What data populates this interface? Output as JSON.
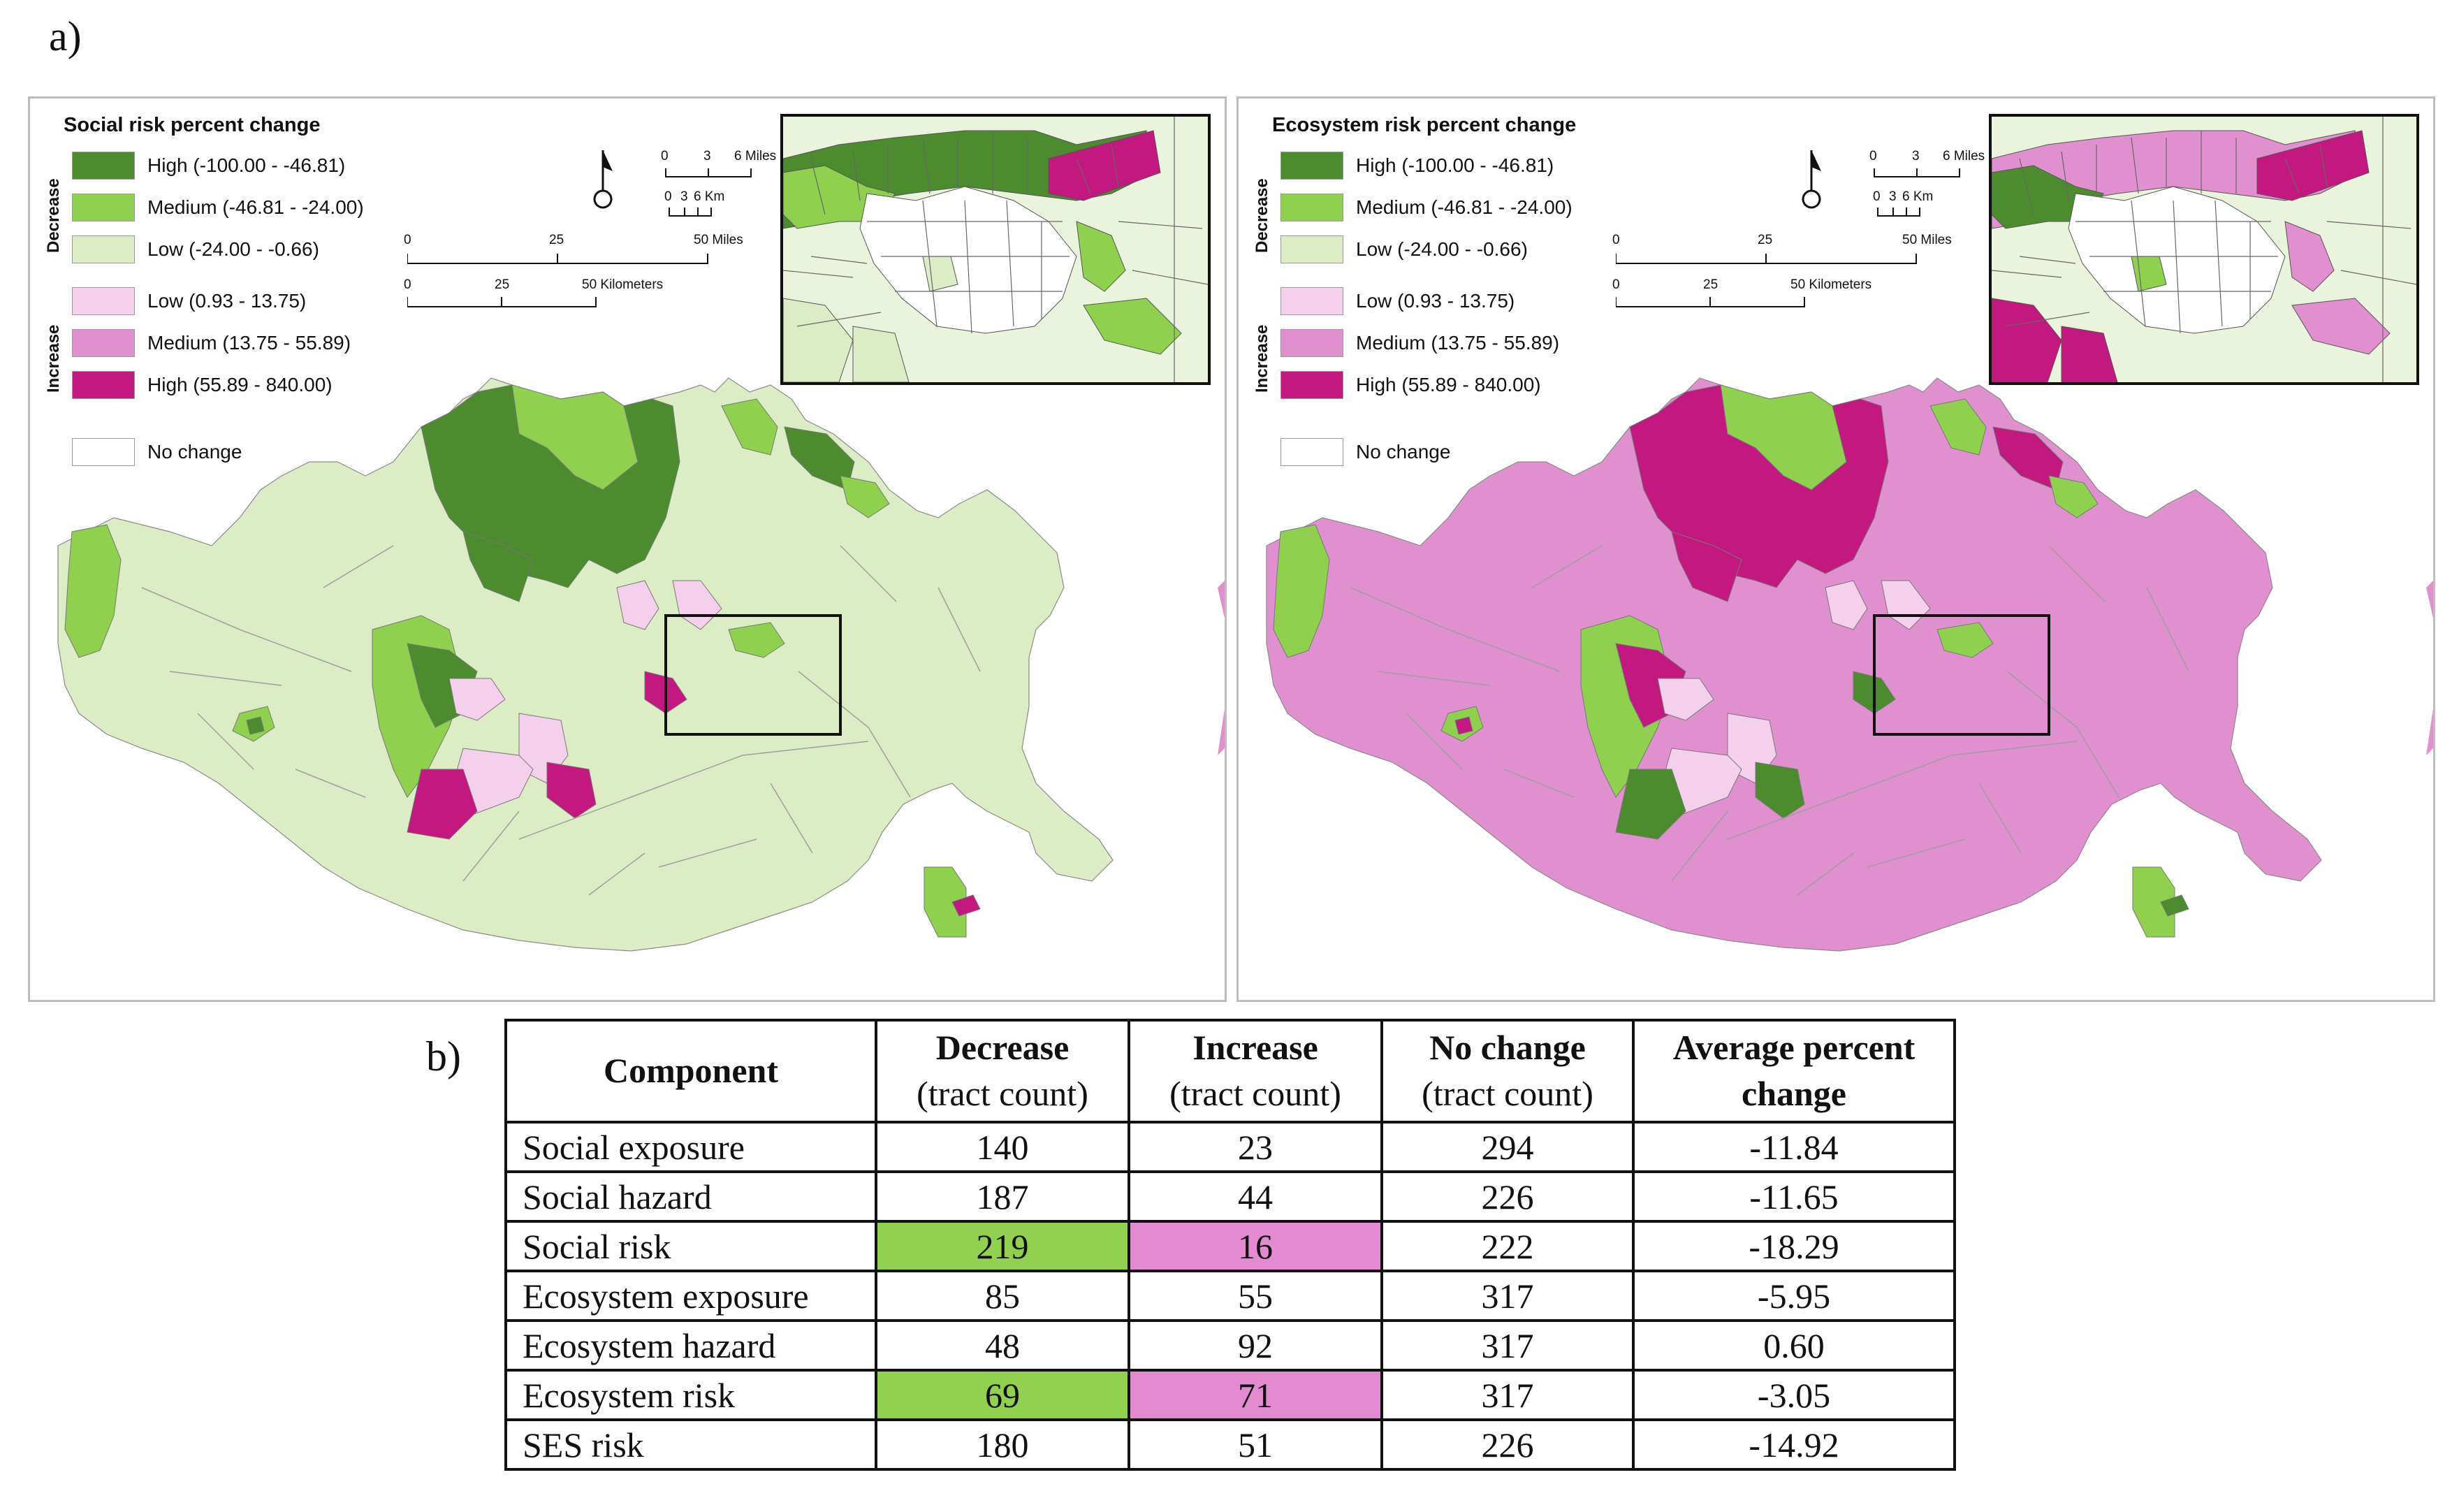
{
  "panel_a_label": "a)",
  "panel_b_label": "b)",
  "maps": [
    {
      "id": "social",
      "legend_title": "Social risk percent change",
      "scheme": "green",
      "inset_scheme": "social"
    },
    {
      "id": "ecosystem",
      "legend_title": "Ecosystem risk percent change",
      "scheme": "pink",
      "inset_scheme": "ecosystem"
    }
  ],
  "legend": {
    "decrease_label": "Decrease",
    "increase_label": "Increase",
    "no_change": "No change",
    "classes": [
      {
        "label": "High (-100.00 - -46.81)",
        "color": "#4c8c2f"
      },
      {
        "label": "Medium (-46.81 - -24.00)",
        "color": "#8fd14f"
      },
      {
        "label": "Low (-24.00 - -0.66)",
        "color": "#dcecc4"
      },
      {
        "label": "Low (0.93 - 13.75)",
        "color": "#f5d0ec"
      },
      {
        "label": "Medium (13.75 - 55.89)",
        "color": "#e090cf"
      },
      {
        "label": "High (55.89 - 840.00)",
        "color": "#c2187f"
      }
    ]
  },
  "scale": {
    "miles_small": [
      "0",
      "3",
      "6 Miles"
    ],
    "km_small": [
      "0",
      "3",
      "6 Km"
    ],
    "miles_large": [
      "0",
      "25",
      "50 Miles"
    ],
    "km_large": [
      "0",
      "25",
      "50 Kilometers"
    ]
  },
  "table": {
    "headers": [
      {
        "title": "Component",
        "sub": ""
      },
      {
        "title": "Decrease",
        "sub": "(tract count)"
      },
      {
        "title": "Increase",
        "sub": "(tract count)"
      },
      {
        "title": "No change",
        "sub": "(tract count)"
      },
      {
        "title": "Average percent",
        "sub": "change"
      }
    ],
    "rows": [
      {
        "component": "Social exposure",
        "decrease": "140",
        "increase": "23",
        "no_change": "294",
        "avg": "-11.84",
        "highlight": false
      },
      {
        "component": "Social hazard",
        "decrease": "187",
        "increase": "44",
        "no_change": "226",
        "avg": "-11.65",
        "highlight": false
      },
      {
        "component": "Social risk",
        "decrease": "219",
        "increase": "16",
        "no_change": "222",
        "avg": "-18.29",
        "highlight": true
      },
      {
        "component": "Ecosystem exposure",
        "decrease": "85",
        "increase": "55",
        "no_change": "317",
        "avg": "-5.95",
        "highlight": false
      },
      {
        "component": "Ecosystem hazard",
        "decrease": "48",
        "increase": "92",
        "no_change": "317",
        "avg": "0.60",
        "highlight": false
      },
      {
        "component": "Ecosystem risk",
        "decrease": "69",
        "increase": "71",
        "no_change": "317",
        "avg": "-3.05",
        "highlight": true
      },
      {
        "component": "SES risk",
        "decrease": "180",
        "increase": "51",
        "no_change": "226",
        "avg": "-14.92",
        "highlight": false
      }
    ],
    "highlight_colors": {
      "decrease": "#92d050",
      "increase": "#e38ad0"
    }
  }
}
